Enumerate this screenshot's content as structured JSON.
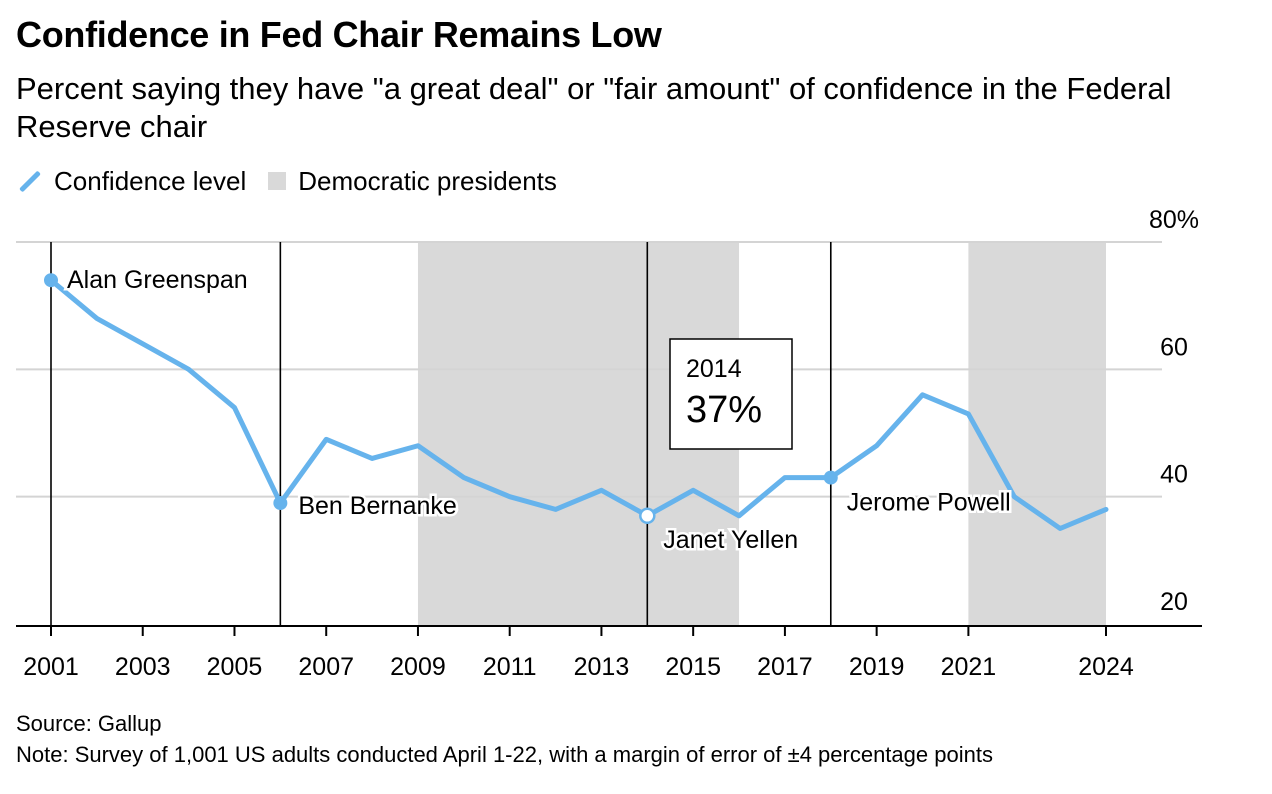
{
  "title": "Confidence in Fed Chair Remains Low",
  "subtitle": "Percent saying they have \"a great deal\" or \"fair amount\" of confidence in the Federal Reserve chair",
  "legend": {
    "line_label": "Confidence level",
    "shade_label": "Democratic presidents"
  },
  "footer": {
    "source": "Source: Gallup",
    "note": "Note: Survey of 1,001 US adults conducted April 1-22, with a margin of error of ±4 percentage points"
  },
  "colors": {
    "line": "#66b3ec",
    "shade": "#d9d9d9",
    "grid": "#d4d4d4"
  },
  "chart_data": {
    "type": "line",
    "title": "Confidence in Fed Chair Remains Low",
    "xlabel": "",
    "ylabel": "",
    "xlim": [
      2001,
      2024
    ],
    "ylim": [
      20,
      80
    ],
    "grid": true,
    "legend_position": "top-left",
    "y_ticks": [
      20,
      40,
      60,
      80
    ],
    "y_tick_labels": [
      "20",
      "40",
      "60",
      "80%"
    ],
    "x_ticks": [
      2001,
      2003,
      2005,
      2007,
      2009,
      2011,
      2013,
      2015,
      2017,
      2019,
      2021,
      2024
    ],
    "series": [
      {
        "name": "Confidence level",
        "x": [
          2001,
          2002,
          2003,
          2004,
          2005,
          2006,
          2007,
          2008,
          2009,
          2010,
          2011,
          2012,
          2013,
          2014,
          2015,
          2016,
          2017,
          2018,
          2019,
          2020,
          2021,
          2022,
          2023,
          2024
        ],
        "values": [
          74,
          68,
          64,
          60,
          54,
          39,
          49,
          46,
          48,
          43,
          40,
          38,
          41,
          37,
          41,
          37,
          43,
          43,
          48,
          56,
          53,
          40,
          35,
          38
        ]
      }
    ],
    "shaded_ranges": [
      {
        "label": "Democratic presidents",
        "start": 2009,
        "end": 2016
      },
      {
        "label": "Democratic presidents",
        "start": 2021,
        "end": 2024
      }
    ],
    "chair_markers": [
      {
        "year": 2001,
        "value": 74,
        "label": "Alan Greenspan",
        "style": "filled"
      },
      {
        "year": 2006,
        "value": 39,
        "label": "Ben Bernanke",
        "style": "filled"
      },
      {
        "year": 2014,
        "value": 37,
        "label": "Janet Yellen",
        "style": "hollow"
      },
      {
        "year": 2018,
        "value": 43,
        "label": "Jerome Powell",
        "style": "filled"
      }
    ],
    "tooltip": {
      "year": "2014",
      "value": "37%"
    }
  }
}
